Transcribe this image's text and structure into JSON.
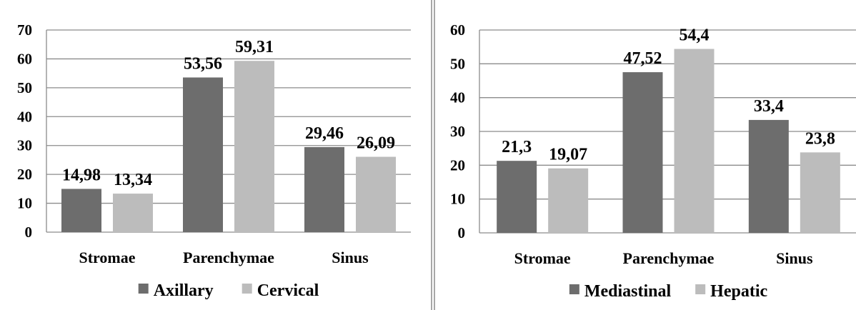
{
  "colors": {
    "series1": "#6d6d6d",
    "series2": "#bcbcbc"
  },
  "chart_data": [
    {
      "type": "bar",
      "categories": [
        "Stromae",
        "Parenchymae",
        "Sinus"
      ],
      "series": [
        {
          "name": "Axillary",
          "values": [
            14.98,
            53.56,
            29.46
          ],
          "labels": [
            "14,98",
            "53,56",
            "29,46"
          ]
        },
        {
          "name": "Cervical",
          "values": [
            13.34,
            59.31,
            26.09
          ],
          "labels": [
            "13,34",
            "59,31",
            "26,09"
          ]
        }
      ],
      "ylim": [
        0,
        70
      ],
      "yticks": [
        0,
        10,
        20,
        30,
        40,
        50,
        60,
        70
      ],
      "grid": true,
      "legend": "bottom"
    },
    {
      "type": "bar",
      "categories": [
        "Stromae",
        "Parenchymae",
        "Sinus"
      ],
      "series": [
        {
          "name": "Mediastinal",
          "values": [
            21.3,
            47.52,
            33.4
          ],
          "labels": [
            "21,3",
            "47,52",
            "33,4"
          ]
        },
        {
          "name": "Hepatic",
          "values": [
            19.07,
            54.4,
            23.8
          ],
          "labels": [
            "19,07",
            "54,4",
            "23,8"
          ]
        }
      ],
      "ylim": [
        0,
        60
      ],
      "yticks": [
        0,
        10,
        20,
        30,
        40,
        50,
        60
      ],
      "grid": true,
      "legend": "bottom"
    }
  ]
}
